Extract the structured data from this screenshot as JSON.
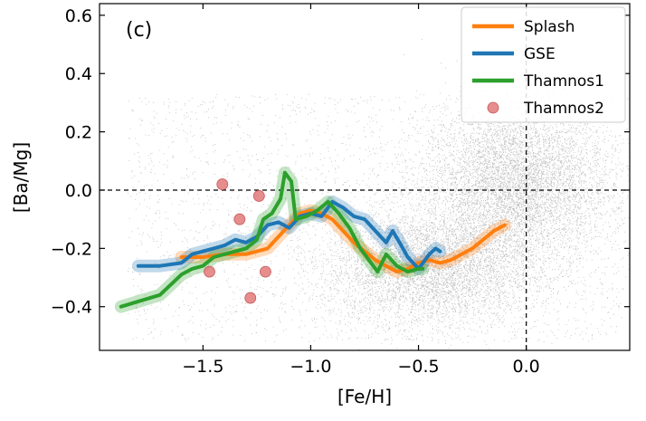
{
  "chart_data": {
    "type": "line",
    "panel_label": "(c)",
    "xlabel": "[Fe/H]",
    "ylabel": "[Ba/Mg]",
    "xlim": [
      -1.98,
      0.48
    ],
    "ylim": [
      -0.55,
      0.64
    ],
    "xticks": [
      -1.5,
      -1.0,
      -0.5,
      0.0
    ],
    "xtick_labels": [
      "−1.5",
      "−1.0",
      "−0.5",
      "0.0"
    ],
    "yticks": [
      -0.4,
      -0.2,
      0.0,
      0.2,
      0.4,
      0.6
    ],
    "ytick_labels": [
      "−0.4",
      "−0.2",
      "0.0",
      "0.2",
      "0.4",
      "0.6"
    ],
    "reference_lines": {
      "y": 0.0,
      "x": 0.0,
      "style": "dashed"
    },
    "legend_position": "top-right",
    "background": {
      "type": "scatter-cloud",
      "color": "#808080"
    },
    "series": [
      {
        "name": "Splash",
        "kind": "line",
        "color": "#ff7f0e",
        "x": [
          -1.6,
          -1.5,
          -1.4,
          -1.3,
          -1.2,
          -1.1,
          -1.05,
          -1.0,
          -0.95,
          -0.9,
          -0.85,
          -0.8,
          -0.75,
          -0.7,
          -0.65,
          -0.6,
          -0.55,
          -0.5,
          -0.45,
          -0.4,
          -0.35,
          -0.3,
          -0.25,
          -0.2,
          -0.15,
          -0.1
        ],
        "y": [
          -0.23,
          -0.23,
          -0.22,
          -0.22,
          -0.2,
          -0.12,
          -0.08,
          -0.07,
          -0.08,
          -0.1,
          -0.14,
          -0.18,
          -0.21,
          -0.24,
          -0.26,
          -0.28,
          -0.27,
          -0.25,
          -0.24,
          -0.25,
          -0.24,
          -0.22,
          -0.2,
          -0.17,
          -0.14,
          -0.12
        ]
      },
      {
        "name": "GSE",
        "kind": "line",
        "color": "#1f77b4",
        "x": [
          -1.8,
          -1.7,
          -1.6,
          -1.55,
          -1.5,
          -1.45,
          -1.4,
          -1.35,
          -1.3,
          -1.25,
          -1.2,
          -1.15,
          -1.1,
          -1.05,
          -1.0,
          -0.95,
          -0.9,
          -0.85,
          -0.8,
          -0.75,
          -0.7,
          -0.65,
          -0.62,
          -0.58,
          -0.55,
          -0.5,
          -0.45,
          -0.42,
          -0.4
        ],
        "y": [
          -0.26,
          -0.26,
          -0.25,
          -0.22,
          -0.21,
          -0.2,
          -0.19,
          -0.17,
          -0.18,
          -0.16,
          -0.12,
          -0.11,
          -0.13,
          -0.09,
          -0.08,
          -0.09,
          -0.04,
          -0.06,
          -0.09,
          -0.1,
          -0.14,
          -0.18,
          -0.14,
          -0.19,
          -0.23,
          -0.27,
          -0.22,
          -0.2,
          -0.21
        ]
      },
      {
        "name": "Thamnos1",
        "kind": "line",
        "color": "#2ca02c",
        "x": [
          -1.88,
          -1.7,
          -1.6,
          -1.55,
          -1.5,
          -1.45,
          -1.4,
          -1.35,
          -1.3,
          -1.25,
          -1.22,
          -1.18,
          -1.14,
          -1.12,
          -1.09,
          -1.07,
          -1.02,
          -0.97,
          -0.92,
          -0.87,
          -0.82,
          -0.77,
          -0.72,
          -0.69,
          -0.65,
          -0.6,
          -0.55,
          -0.5,
          -0.48
        ],
        "y": [
          -0.4,
          -0.36,
          -0.29,
          -0.27,
          -0.26,
          -0.23,
          -0.22,
          -0.21,
          -0.2,
          -0.17,
          -0.1,
          -0.08,
          -0.03,
          0.06,
          0.03,
          -0.1,
          -0.09,
          -0.07,
          -0.04,
          -0.08,
          -0.13,
          -0.2,
          -0.25,
          -0.28,
          -0.22,
          -0.26,
          -0.28,
          -0.27,
          -0.27
        ]
      },
      {
        "name": "Thamnos2",
        "kind": "scatter",
        "color": "#e07070",
        "x": [
          -1.41,
          -1.24,
          -1.33,
          -1.47,
          -1.21,
          -1.28
        ],
        "y": [
          0.02,
          -0.02,
          -0.1,
          -0.28,
          -0.28,
          -0.37
        ]
      }
    ]
  }
}
